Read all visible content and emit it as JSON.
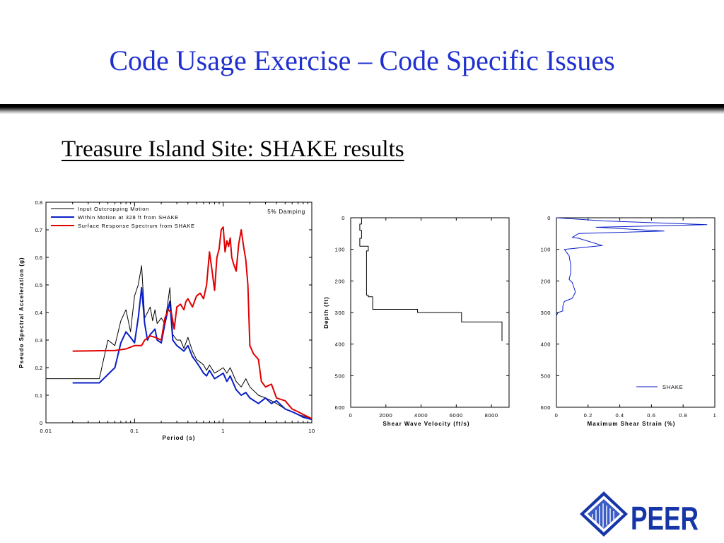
{
  "slide": {
    "title": "Code Usage Exercise – Code Specific Issues",
    "subtitle": "Treasure Island Site: SHAKE results"
  },
  "logo": {
    "text": "PEER",
    "icon": "peer-diamond-icon",
    "color": "#1636a8"
  },
  "colors": {
    "title": "#1f2fd0",
    "input": "#000000",
    "within": "#0a1fc8",
    "surface": "#e00000",
    "strain": "#0a1fc8"
  },
  "chart_data": [
    {
      "type": "line",
      "xscale": "log",
      "xlim": [
        0.01,
        10
      ],
      "ylim": [
        0,
        0.8
      ],
      "xlabel": "Period (s)",
      "ylabel": "Pseudo Spectral Acceleration (g)",
      "xticks": [
        0.01,
        0.1,
        1,
        10
      ],
      "xtick_labels": [
        "0.01",
        "0.1",
        "1",
        "10"
      ],
      "yticks": [
        0,
        0.1,
        0.2,
        0.3,
        0.4,
        0.5,
        0.6,
        0.7,
        0.8
      ],
      "ytick_labels": [
        "0",
        "0.1",
        "0.2",
        "0.3",
        "0.4",
        "0.5",
        "0.6",
        "0.7",
        "0.8"
      ],
      "legend": "top-left",
      "annotation": "5% Damping",
      "series": [
        {
          "name": "Input Outcropping Motion",
          "color": "#000000",
          "x": [
            0.01,
            0.04,
            0.05,
            0.06,
            0.07,
            0.08,
            0.09,
            0.1,
            0.11,
            0.12,
            0.13,
            0.14,
            0.15,
            0.16,
            0.17,
            0.18,
            0.2,
            0.22,
            0.25,
            0.27,
            0.3,
            0.33,
            0.36,
            0.4,
            0.45,
            0.5,
            0.55,
            0.6,
            0.65,
            0.7,
            0.8,
            0.9,
            1.0,
            1.1,
            1.2,
            1.4,
            1.6,
            1.8,
            2.0,
            2.5,
            3.0,
            3.5,
            4.0,
            5.0,
            6.0,
            7.0,
            8.0,
            10.0
          ],
          "y": [
            0.16,
            0.16,
            0.3,
            0.28,
            0.37,
            0.41,
            0.33,
            0.46,
            0.5,
            0.57,
            0.38,
            0.4,
            0.42,
            0.37,
            0.41,
            0.36,
            0.38,
            0.36,
            0.49,
            0.32,
            0.3,
            0.3,
            0.27,
            0.31,
            0.26,
            0.23,
            0.22,
            0.21,
            0.19,
            0.21,
            0.18,
            0.19,
            0.2,
            0.18,
            0.2,
            0.15,
            0.13,
            0.16,
            0.13,
            0.1,
            0.09,
            0.08,
            0.07,
            0.05,
            0.04,
            0.03,
            0.025,
            0.015
          ]
        },
        {
          "name": "Within Motion at 328 ft from SHAKE",
          "color": "#0a1fc8",
          "x": [
            0.02,
            0.04,
            0.06,
            0.07,
            0.08,
            0.09,
            0.1,
            0.11,
            0.12,
            0.13,
            0.14,
            0.15,
            0.16,
            0.17,
            0.18,
            0.2,
            0.22,
            0.25,
            0.27,
            0.3,
            0.33,
            0.36,
            0.4,
            0.45,
            0.5,
            0.55,
            0.6,
            0.65,
            0.7,
            0.8,
            0.9,
            1.0,
            1.1,
            1.2,
            1.4,
            1.6,
            1.8,
            2.0,
            2.5,
            3.0,
            3.5,
            4.0,
            5.0,
            6.0,
            7.0,
            8.0,
            10.0
          ],
          "y": [
            0.145,
            0.145,
            0.2,
            0.29,
            0.33,
            0.31,
            0.29,
            0.38,
            0.49,
            0.36,
            0.3,
            0.32,
            0.33,
            0.34,
            0.3,
            0.29,
            0.36,
            0.44,
            0.3,
            0.28,
            0.27,
            0.26,
            0.28,
            0.24,
            0.22,
            0.2,
            0.18,
            0.17,
            0.19,
            0.16,
            0.17,
            0.18,
            0.15,
            0.17,
            0.12,
            0.1,
            0.11,
            0.09,
            0.07,
            0.09,
            0.07,
            0.08,
            0.05,
            0.04,
            0.03,
            0.02,
            0.012
          ]
        },
        {
          "name": "Surface Response Spectrum from SHAKE",
          "color": "#e00000",
          "x": [
            0.02,
            0.06,
            0.08,
            0.1,
            0.12,
            0.13,
            0.15,
            0.17,
            0.2,
            0.22,
            0.24,
            0.26,
            0.28,
            0.3,
            0.33,
            0.36,
            0.38,
            0.4,
            0.45,
            0.5,
            0.55,
            0.6,
            0.65,
            0.7,
            0.75,
            0.8,
            0.85,
            0.9,
            0.95,
            1.0,
            1.05,
            1.1,
            1.15,
            1.2,
            1.25,
            1.3,
            1.4,
            1.5,
            1.6,
            1.7,
            1.8,
            1.9,
            2.0,
            2.2,
            2.5,
            2.7,
            3.0,
            3.5,
            4.0,
            5.0,
            6.0,
            7.0,
            8.0,
            10.0
          ],
          "y": [
            0.26,
            0.262,
            0.268,
            0.28,
            0.28,
            0.3,
            0.315,
            0.31,
            0.3,
            0.38,
            0.41,
            0.4,
            0.34,
            0.42,
            0.43,
            0.41,
            0.44,
            0.45,
            0.42,
            0.46,
            0.47,
            0.45,
            0.5,
            0.62,
            0.55,
            0.48,
            0.6,
            0.63,
            0.7,
            0.71,
            0.62,
            0.66,
            0.64,
            0.67,
            0.6,
            0.58,
            0.55,
            0.65,
            0.7,
            0.64,
            0.59,
            0.5,
            0.28,
            0.25,
            0.23,
            0.15,
            0.13,
            0.14,
            0.09,
            0.08,
            0.05,
            0.04,
            0.03,
            0.015
          ]
        }
      ]
    },
    {
      "type": "line",
      "xlim": [
        0,
        9000
      ],
      "ylim": [
        0,
        600
      ],
      "y_inverted": true,
      "xlabel": "Shear Wave Velocity (ft/s)",
      "ylabel": "Depth (ft)",
      "xticks": [
        0,
        2000,
        4000,
        6000,
        8000
      ],
      "xtick_labels": [
        "0",
        "2000",
        "4000",
        "6000",
        "8000"
      ],
      "yticks": [
        0,
        100,
        200,
        300,
        400,
        500,
        600
      ],
      "ytick_labels": [
        "0",
        "100",
        "200",
        "300",
        "400",
        "500",
        "600"
      ],
      "series": [
        {
          "color": "#000000",
          "x": [
            620,
            620,
            520,
            520,
            620,
            620,
            520,
            520,
            1000,
            1000,
            900,
            900,
            1000,
            1000,
            1250,
            1250,
            3800,
            3800,
            6300,
            6300,
            8600,
            8600
          ],
          "y": [
            0,
            20,
            20,
            40,
            40,
            65,
            65,
            90,
            90,
            105,
            105,
            245,
            245,
            250,
            250,
            290,
            290,
            300,
            300,
            330,
            330,
            390
          ]
        }
      ]
    },
    {
      "type": "line",
      "xlim": [
        0,
        1
      ],
      "ylim": [
        0,
        600
      ],
      "y_inverted": true,
      "xlabel": "Maximum Shear Strain (%)",
      "ylabel": "",
      "xticks": [
        0,
        0.2,
        0.4,
        0.6,
        0.8,
        1
      ],
      "xtick_labels": [
        "0",
        "0.2",
        "0.4",
        "0.6",
        "0.8",
        "1"
      ],
      "yticks": [
        0,
        100,
        200,
        300,
        400,
        500,
        600
      ],
      "ytick_labels": [
        "0",
        "100",
        "200",
        "300",
        "400",
        "500",
        "600"
      ],
      "legend": "bottom-right",
      "series": [
        {
          "name": "SHAKE",
          "color": "#0a1fc8",
          "x": [
            0.0,
            0.3,
            0.95,
            0.25,
            0.68,
            0.14,
            0.1,
            0.14,
            0.29,
            0.05,
            0.08,
            0.09,
            0.09,
            0.08,
            0.1,
            0.12,
            0.1,
            0.05,
            0.04,
            0.04,
            0.01,
            0.0
          ],
          "y": [
            0,
            10,
            22,
            30,
            42,
            50,
            62,
            65,
            88,
            100,
            120,
            150,
            175,
            195,
            205,
            235,
            255,
            265,
            280,
            295,
            300,
            310
          ]
        }
      ]
    }
  ]
}
